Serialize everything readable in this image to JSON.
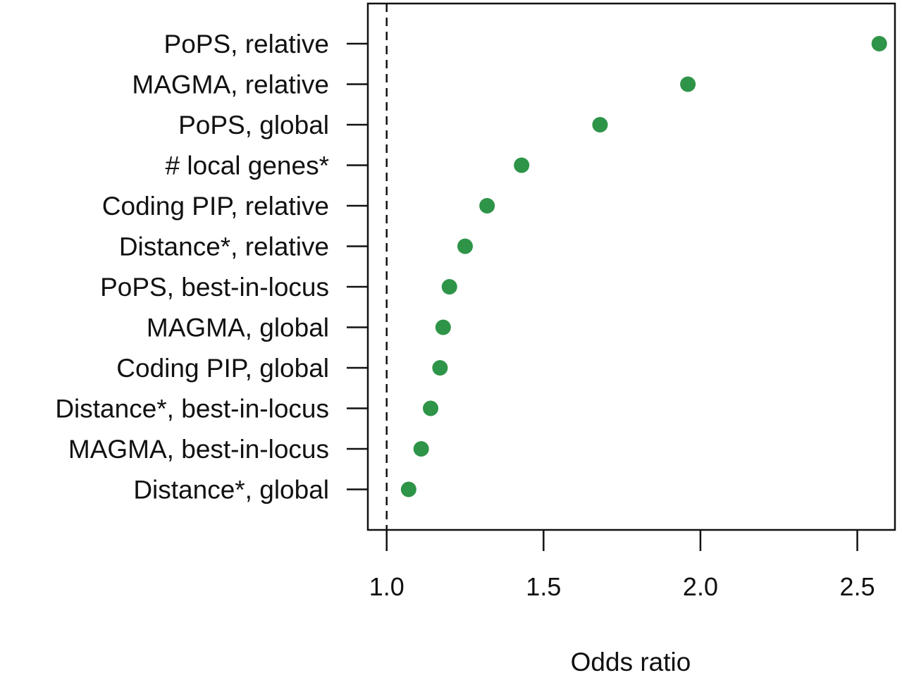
{
  "chart_data": {
    "type": "scatter",
    "xlabel": "Odds ratio",
    "categories": [
      "PoPS, relative",
      "MAGMA, relative",
      "PoPS, global",
      "# local genes*",
      "Coding PIP, relative",
      "Distance*, relative",
      "PoPS, best-in-locus",
      "MAGMA, global",
      "Coding PIP, global",
      "Distance*, best-in-locus",
      "MAGMA, best-in-locus",
      "Distance*, global"
    ],
    "values": [
      2.57,
      1.96,
      1.68,
      1.43,
      1.32,
      1.25,
      1.2,
      1.18,
      1.17,
      1.14,
      1.11,
      1.07
    ],
    "xlim": [
      0.94,
      2.62
    ],
    "xticks": [
      1.0,
      1.5,
      2.0,
      2.5
    ],
    "xtick_labels": [
      "1.0",
      "1.5",
      "2.0",
      "2.5"
    ],
    "reference_line": 1.0,
    "reference_line_style": "dashed",
    "grid": false,
    "legend": "none",
    "point_color": "#2e9448"
  }
}
